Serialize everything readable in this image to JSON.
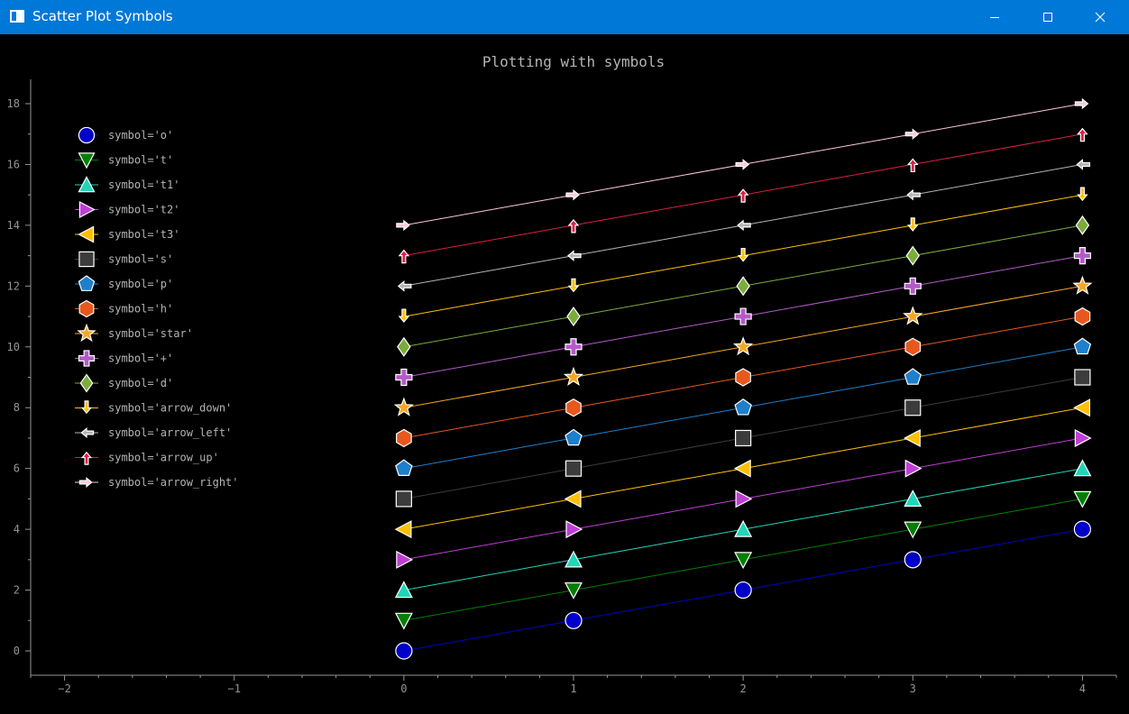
{
  "window": {
    "title": "Scatter Plot Symbols",
    "titlebar_color": "#0078d7"
  },
  "chart_data": {
    "type": "scatter",
    "title": "Plotting with symbols",
    "xlabel": "",
    "ylabel": "",
    "xlim": [
      -2.2,
      4.2
    ],
    "ylim": [
      -0.8,
      18.8
    ],
    "x_ticks": [
      -2,
      -1,
      0,
      1,
      2,
      3,
      4
    ],
    "y_ticks": [
      0,
      2,
      4,
      6,
      8,
      10,
      12,
      14,
      16,
      18
    ],
    "grid": false,
    "legend_position": "top-left",
    "background": "#000000",
    "axis_color": "#969696",
    "x": [
      0,
      1,
      2,
      3,
      4
    ],
    "series": [
      {
        "name": "symbol='o'",
        "symbol": "o",
        "color": "#0000c8",
        "y": [
          0,
          1,
          2,
          3,
          4
        ]
      },
      {
        "name": "symbol='t'",
        "symbol": "t",
        "color": "#008000",
        "y": [
          1,
          2,
          3,
          4,
          5
        ]
      },
      {
        "name": "symbol='t1'",
        "symbol": "t1",
        "color": "#1fd6b8",
        "y": [
          2,
          3,
          4,
          5,
          6
        ]
      },
      {
        "name": "symbol='t2'",
        "symbol": "t2",
        "color": "#c03ed6",
        "y": [
          3,
          4,
          5,
          6,
          7
        ]
      },
      {
        "name": "symbol='t3'",
        "symbol": "t3",
        "color": "#ffc000",
        "y": [
          4,
          5,
          6,
          7,
          8
        ]
      },
      {
        "name": "symbol='s'",
        "symbol": "s",
        "color": "#3c3c3c",
        "y": [
          5,
          6,
          7,
          8,
          9
        ]
      },
      {
        "name": "symbol='p'",
        "symbol": "p",
        "color": "#1e7fcc",
        "y": [
          6,
          7,
          8,
          9,
          10
        ]
      },
      {
        "name": "symbol='h'",
        "symbol": "h",
        "color": "#e8581e",
        "y": [
          7,
          8,
          9,
          10,
          11
        ]
      },
      {
        "name": "symbol='star'",
        "symbol": "star",
        "color": "#f5a623",
        "y": [
          8,
          9,
          10,
          11,
          12
        ]
      },
      {
        "name": "symbol='+'",
        "symbol": "+",
        "color": "#b45ac8",
        "y": [
          9,
          10,
          11,
          12,
          13
        ]
      },
      {
        "name": "symbol='d'",
        "symbol": "d",
        "color": "#7cac3c",
        "y": [
          10,
          11,
          12,
          13,
          14
        ]
      },
      {
        "name": "symbol='arrow_down'",
        "symbol": "arrow_down",
        "color": "#ffc000",
        "y": [
          11,
          12,
          13,
          14,
          15
        ]
      },
      {
        "name": "symbol='arrow_left'",
        "symbol": "arrow_left",
        "color": "#b4b4b4",
        "y": [
          12,
          13,
          14,
          15,
          16
        ]
      },
      {
        "name": "symbol='arrow_up'",
        "symbol": "arrow_up",
        "color": "#dc1e46",
        "y": [
          13,
          14,
          15,
          16,
          17
        ]
      },
      {
        "name": "symbol='arrow_right'",
        "symbol": "arrow_right",
        "color": "#ffc8d8",
        "y": [
          14,
          15,
          16,
          17,
          18
        ]
      }
    ]
  }
}
